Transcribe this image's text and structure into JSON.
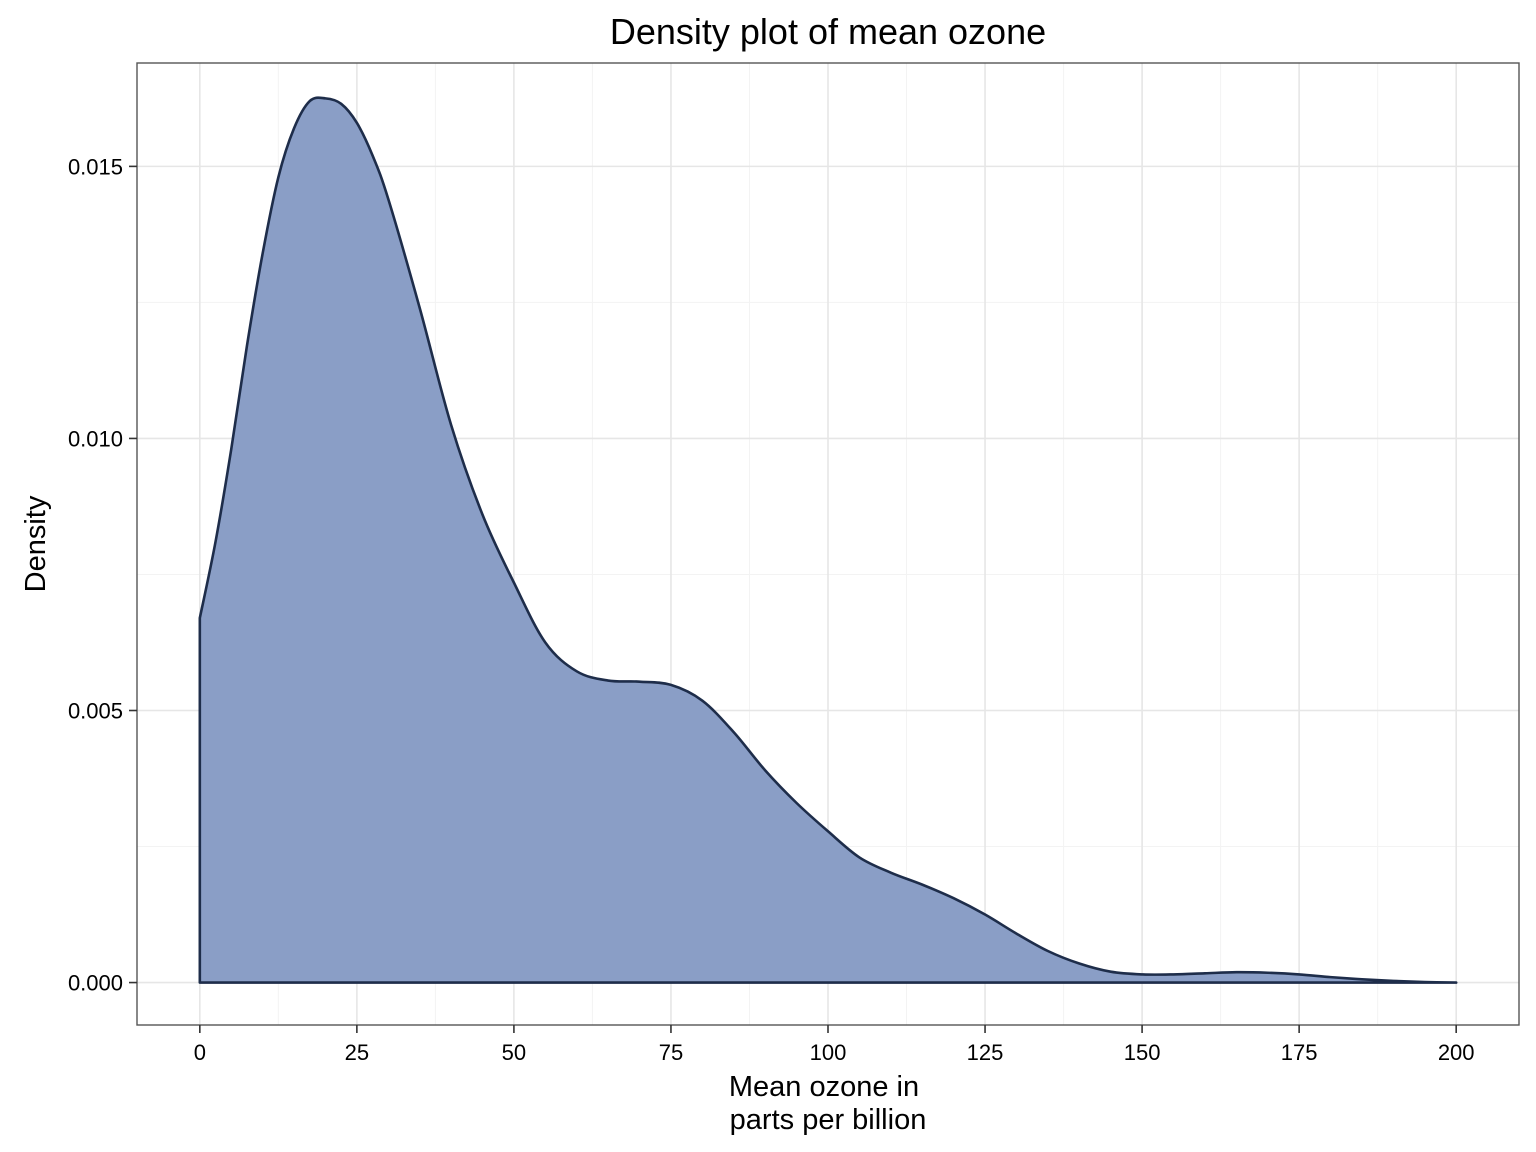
{
  "chart_data": {
    "type": "area",
    "title": "Density plot of mean ozone",
    "xlabel": [
      "Mean ozone in",
      "parts per billion"
    ],
    "ylabel": "Density",
    "xlim": [
      -10,
      210
    ],
    "ylim": [
      -0.00078,
      0.0169
    ],
    "x_breaks": [
      0,
      25,
      50,
      75,
      100,
      125,
      150,
      175,
      200
    ],
    "x_tick_labels": [
      "0",
      "25",
      "50",
      "75",
      "100",
      "125",
      "150",
      "175",
      "200"
    ],
    "y_breaks": [
      0,
      0.005,
      0.01,
      0.015
    ],
    "y_tick_labels": [
      "0.000",
      "0.005",
      "0.010",
      "0.015"
    ],
    "grid": true,
    "legend": "none",
    "colors": {
      "fill": "#8A9EC6",
      "line": "#1E2D4A",
      "grid_major": "#e6e6e6",
      "grid_minor": "#f3f3f3",
      "panel_border": "#555555"
    },
    "series": [
      {
        "x": [
          0,
          2.5,
          5,
          7.5,
          10,
          12.5,
          15,
          17.5,
          20,
          22.5,
          25,
          27.5,
          30,
          35,
          40,
          45,
          50,
          55,
          60,
          65,
          70,
          75,
          80,
          85,
          90,
          95,
          100,
          105,
          110,
          115,
          120,
          125,
          130,
          135,
          140,
          145,
          150,
          155,
          160,
          165,
          170,
          175,
          180,
          185,
          190,
          195,
          200
        ],
        "y": [
          0.0067,
          0.0081,
          0.0098,
          0.0117,
          0.0134,
          0.0148,
          0.0157,
          0.0162,
          0.01625,
          0.01615,
          0.0158,
          0.0152,
          0.0144,
          0.0124,
          0.01025,
          0.0086,
          0.00735,
          0.00625,
          0.00572,
          0.00555,
          0.00553,
          0.00547,
          0.00518,
          0.0046,
          0.0039,
          0.0033,
          0.00278,
          0.0023,
          0.00202,
          0.0018,
          0.00155,
          0.00125,
          0.0009,
          0.00058,
          0.00035,
          0.0002,
          0.00015,
          0.00015,
          0.00017,
          0.00019,
          0.00018,
          0.00015,
          0.0001,
          6e-05,
          3e-05,
          1e-05,
          0
        ]
      }
    ]
  }
}
